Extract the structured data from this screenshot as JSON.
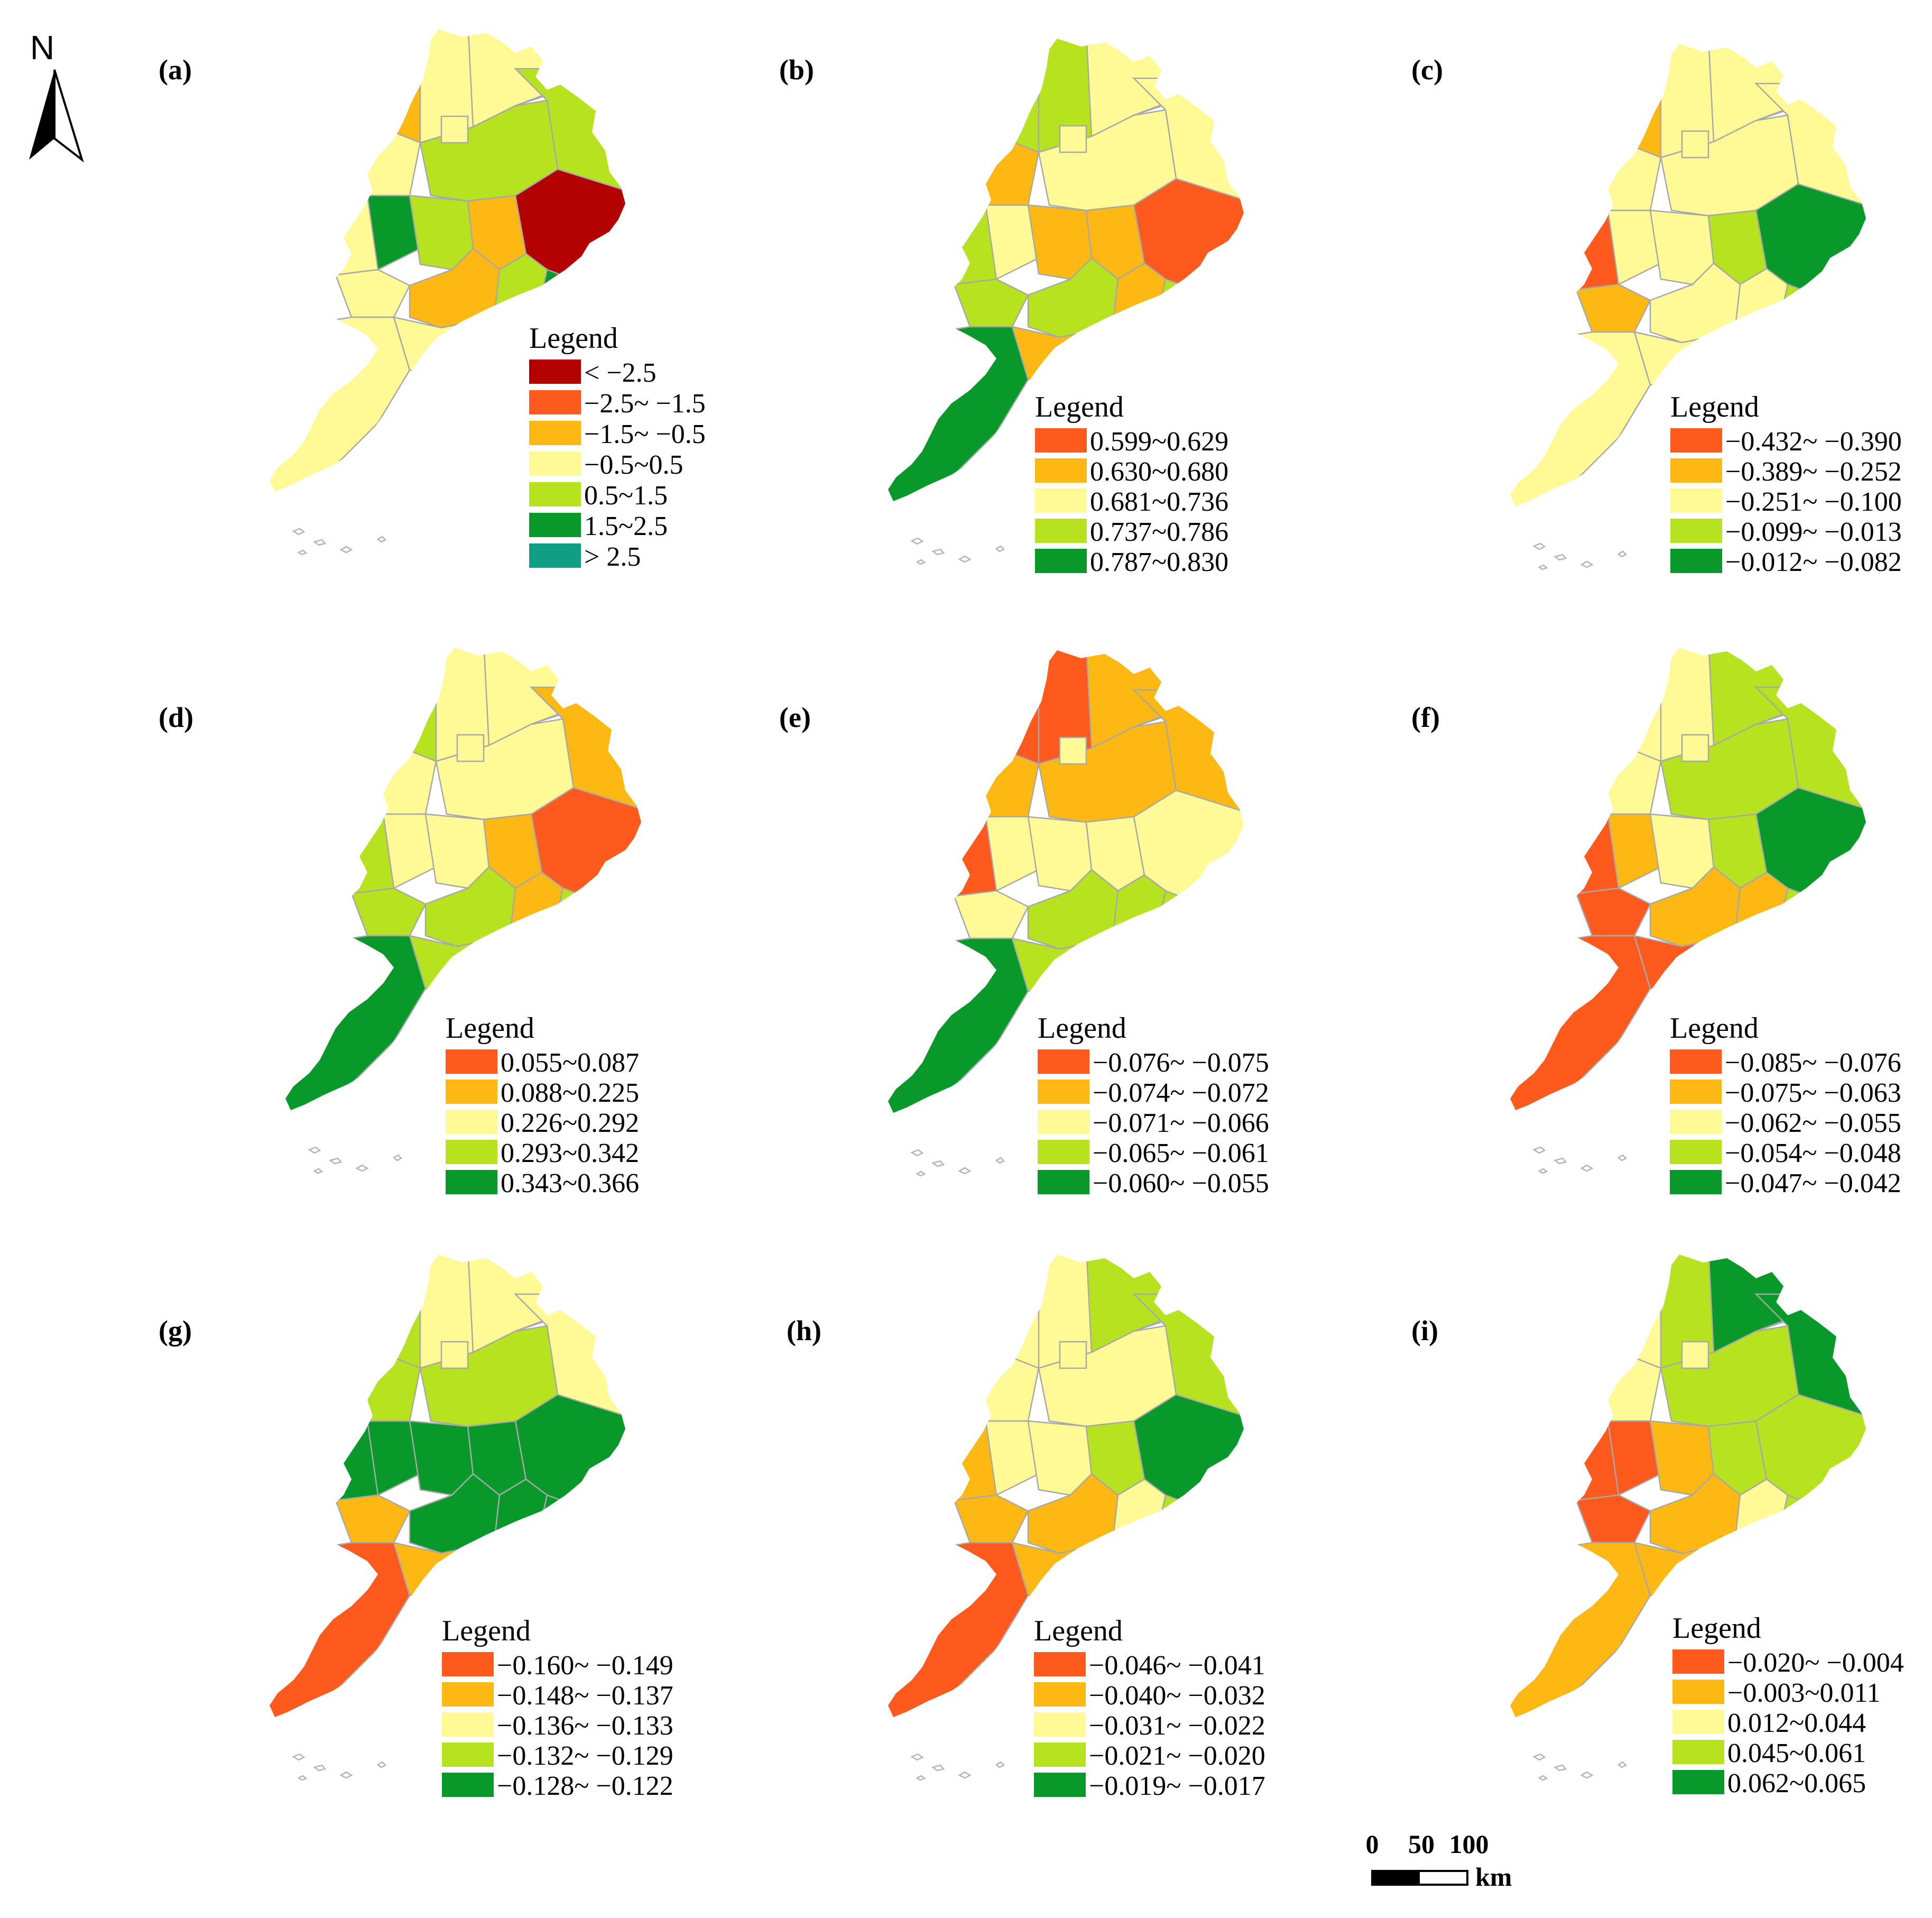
{
  "north_arrow": {
    "letter": "N"
  },
  "scale_bar": {
    "ticks": [
      "0",
      "50",
      "100"
    ],
    "unit": "km"
  },
  "colors": {
    "dark_red": "#b30000",
    "red": "#fe5a1d",
    "orange": "#fdb813",
    "yellow": "#fffa96",
    "light_green": "#b6e21f",
    "green": "#08992a",
    "teal": "#109f85"
  },
  "panels": [
    {
      "label": "(a)",
      "legend_title": "Legend",
      "classes": [
        {
          "range": "< −2.5",
          "color": "#b30000"
        },
        {
          "range": "−2.5~ −1.5",
          "color": "#fe5a1d"
        },
        {
          "range": "−1.5~ −0.5",
          "color": "#fdb813"
        },
        {
          "range": "−0.5~0.5",
          "color": "#fffa96"
        },
        {
          "range": "0.5~1.5",
          "color": "#b6e21f"
        },
        {
          "range": "1.5~2.5",
          "color": "#08992a"
        },
        {
          "range": "> 2.5",
          "color": "#109f85"
        }
      ],
      "regions": [
        "yellow",
        "orange",
        "yellow",
        "light_green",
        "yellow",
        "light_green",
        "yellow",
        "green",
        "light_green",
        "orange",
        "dark_red",
        "yellow",
        "orange",
        "light_green",
        "green",
        "yellow",
        "yellow",
        "yellow",
        "yellow"
      ]
    },
    {
      "label": "(b)",
      "legend_title": "Legend",
      "classes": [
        {
          "range": "0.599~0.629",
          "color": "#fe5a1d"
        },
        {
          "range": "0.630~0.680",
          "color": "#fdb813"
        },
        {
          "range": "0.681~0.736",
          "color": "#fffa96"
        },
        {
          "range": "0.737~0.786",
          "color": "#b6e21f"
        },
        {
          "range": "0.787~0.830",
          "color": "#08992a"
        }
      ],
      "regions": [
        "light_green",
        "light_green",
        "yellow",
        "yellow",
        "orange",
        "yellow",
        "light_green",
        "yellow",
        "orange",
        "orange",
        "red",
        "light_green",
        "light_green",
        "orange",
        "light_green",
        "green",
        "orange",
        "red",
        "yellow"
      ]
    },
    {
      "label": "(c)",
      "legend_title": "Legend",
      "classes": [
        {
          "range": "−0.432~ −0.390",
          "color": "#fe5a1d"
        },
        {
          "range": "−0.389~ −0.252",
          "color": "#fdb813"
        },
        {
          "range": "−0.251~ −0.100",
          "color": "#fffa96"
        },
        {
          "range": "−0.099~ −0.013",
          "color": "#b6e21f"
        },
        {
          "range": "−0.012~ −0.082",
          "color": "#08992a"
        }
      ],
      "regions": [
        "yellow",
        "orange",
        "yellow",
        "yellow",
        "yellow",
        "yellow",
        "red",
        "yellow",
        "yellow",
        "light_green",
        "green",
        "orange",
        "yellow",
        "yellow",
        "light_green",
        "yellow",
        "yellow",
        "green",
        "yellow"
      ]
    },
    {
      "label": "(d)",
      "legend_title": "Legend",
      "classes": [
        {
          "range": "0.055~0.087",
          "color": "#fe5a1d"
        },
        {
          "range": "0.088~0.225",
          "color": "#fdb813"
        },
        {
          "range": "0.226~0.292",
          "color": "#fffa96"
        },
        {
          "range": "0.293~0.342",
          "color": "#b6e21f"
        },
        {
          "range": "0.343~0.366",
          "color": "#08992a"
        }
      ],
      "regions": [
        "yellow",
        "light_green",
        "yellow",
        "orange",
        "yellow",
        "yellow",
        "light_green",
        "yellow",
        "yellow",
        "orange",
        "red",
        "light_green",
        "light_green",
        "orange",
        "light_green",
        "green",
        "light_green",
        "orange",
        "yellow"
      ]
    },
    {
      "label": "(e)",
      "legend_title": "Legend",
      "classes": [
        {
          "range": "−0.076~ −0.075",
          "color": "#fe5a1d"
        },
        {
          "range": "−0.074~ −0.072",
          "color": "#fdb813"
        },
        {
          "range": "−0.071~ −0.066",
          "color": "#fffa96"
        },
        {
          "range": "−0.065~ −0.061",
          "color": "#b6e21f"
        },
        {
          "range": "−0.060~ −0.055",
          "color": "#08992a"
        }
      ],
      "regions": [
        "red",
        "red",
        "orange",
        "orange",
        "orange",
        "orange",
        "red",
        "yellow",
        "yellow",
        "yellow",
        "yellow",
        "yellow",
        "light_green",
        "light_green",
        "light_green",
        "green",
        "light_green",
        "green",
        "yellow"
      ]
    },
    {
      "label": "(f)",
      "legend_title": "Legend",
      "classes": [
        {
          "range": "−0.085~ −0.076",
          "color": "#fe5a1d"
        },
        {
          "range": "−0.075~ −0.063",
          "color": "#fdb813"
        },
        {
          "range": "−0.062~ −0.055",
          "color": "#fffa96"
        },
        {
          "range": "−0.054~ −0.048",
          "color": "#b6e21f"
        },
        {
          "range": "−0.047~ −0.042",
          "color": "#08992a"
        }
      ],
      "regions": [
        "yellow",
        "yellow",
        "light_green",
        "light_green",
        "yellow",
        "light_green",
        "red",
        "orange",
        "yellow",
        "light_green",
        "green",
        "red",
        "orange",
        "orange",
        "light_green",
        "red",
        "red",
        "orange",
        "yellow"
      ]
    },
    {
      "label": "(g)",
      "legend_title": "Legend",
      "classes": [
        {
          "range": "−0.160~ −0.149",
          "color": "#fe5a1d"
        },
        {
          "range": "−0.148~ −0.137",
          "color": "#fdb813"
        },
        {
          "range": "−0.136~ −0.133",
          "color": "#fffa96"
        },
        {
          "range": "−0.132~ −0.129",
          "color": "#b6e21f"
        },
        {
          "range": "−0.128~ −0.122",
          "color": "#08992a"
        }
      ],
      "regions": [
        "yellow",
        "light_green",
        "yellow",
        "yellow",
        "light_green",
        "light_green",
        "green",
        "green",
        "green",
        "green",
        "green",
        "orange",
        "green",
        "green",
        "green",
        "red",
        "orange",
        "light_green",
        "yellow"
      ]
    },
    {
      "label": "(h)",
      "legend_title": "Legend",
      "classes": [
        {
          "range": "−0.046~ −0.041",
          "color": "#fe5a1d"
        },
        {
          "range": "−0.040~ −0.032",
          "color": "#fdb813"
        },
        {
          "range": "−0.031~ −0.022",
          "color": "#fffa96"
        },
        {
          "range": "−0.021~ −0.020",
          "color": "#b6e21f"
        },
        {
          "range": "−0.019~ −0.017",
          "color": "#08992a"
        }
      ],
      "regions": [
        "yellow",
        "yellow",
        "light_green",
        "light_green",
        "yellow",
        "yellow",
        "orange",
        "yellow",
        "yellow",
        "light_green",
        "green",
        "orange",
        "orange",
        "yellow",
        "light_green",
        "red",
        "orange",
        "light_green",
        "yellow"
      ]
    },
    {
      "label": "(i)",
      "legend_title": "Legend",
      "classes": [
        {
          "range": "−0.020~ −0.004",
          "color": "#fe5a1d"
        },
        {
          "range": "−0.003~0.011",
          "color": "#fdb813"
        },
        {
          "range": "0.012~0.044",
          "color": "#fffa96"
        },
        {
          "range": "0.045~0.061",
          "color": "#b6e21f"
        },
        {
          "range": "0.062~0.065",
          "color": "#08992a"
        }
      ],
      "regions": [
        "light_green",
        "yellow",
        "green",
        "green",
        "yellow",
        "light_green",
        "red",
        "red",
        "orange",
        "light_green",
        "light_green",
        "red",
        "orange",
        "yellow",
        "light_green",
        "orange",
        "orange",
        "yellow",
        "yellow"
      ]
    }
  ]
}
